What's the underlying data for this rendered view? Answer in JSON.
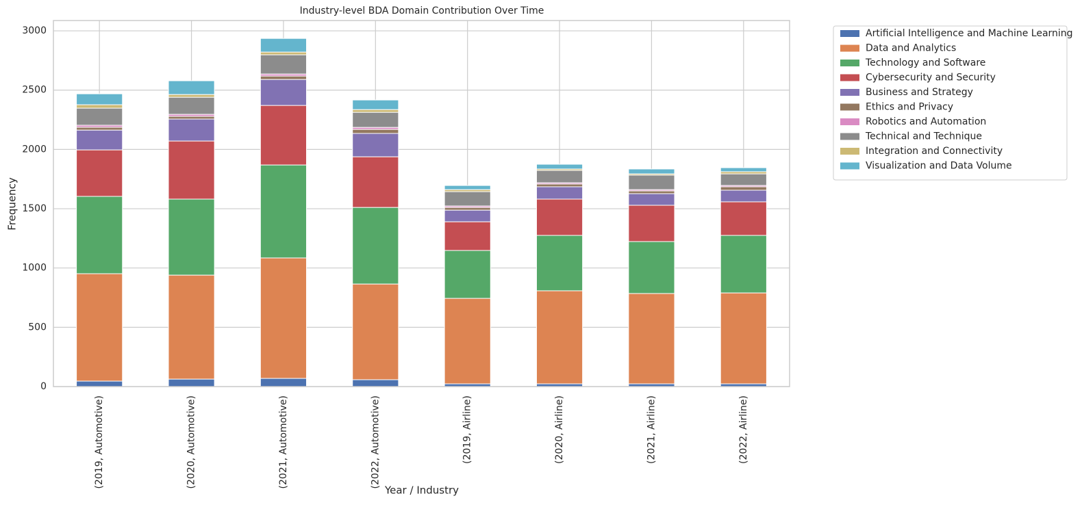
{
  "chart_data": {
    "type": "bar",
    "stacked": true,
    "title": "Industry-level BDA Domain Contribution Over Time",
    "x_label": "Year / Industry",
    "y_label": "Frequency",
    "categories": [
      "(2019, Automotive)",
      "(2020, Automotive)",
      "(2021, Automotive)",
      "(2022, Automotive)",
      "(2019, Airline)",
      "(2020, Airline)",
      "(2021, Airline)",
      "(2022, Airline)"
    ],
    "series": [
      {
        "name": "Artificial Intelligence and Machine Learning",
        "color": "#4c72b0",
        "values": [
          46,
          63,
          69,
          58,
          23,
          23,
          23,
          23
        ]
      },
      {
        "name": "Data and Analytics",
        "color": "#dd8452",
        "values": [
          906,
          877,
          1016,
          807,
          721,
          785,
          762,
          767
        ]
      },
      {
        "name": "Technology and Software",
        "color": "#55a868",
        "values": [
          652,
          641,
          784,
          646,
          404,
          467,
          438,
          485
        ]
      },
      {
        "name": "Cybersecurity and Security",
        "color": "#c44e52",
        "values": [
          392,
          490,
          502,
          427,
          242,
          306,
          306,
          283
        ]
      },
      {
        "name": "Business and Strategy",
        "color": "#8172b3",
        "values": [
          167,
          185,
          219,
          197,
          98,
          104,
          98,
          98
        ]
      },
      {
        "name": "Ethics and Privacy",
        "color": "#937860",
        "values": [
          24,
          23,
          29,
          34,
          23,
          23,
          23,
          29
        ]
      },
      {
        "name": "Robotics and Automation",
        "color": "#da8bc3",
        "values": [
          17,
          17,
          17,
          17,
          12,
          11,
          11,
          11
        ]
      },
      {
        "name": "Technical and Technique",
        "color": "#8c8c8c",
        "values": [
          144,
          144,
          162,
          127,
          121,
          104,
          122,
          98
        ]
      },
      {
        "name": "Integration and Connectivity",
        "color": "#ccb974",
        "values": [
          29,
          23,
          23,
          23,
          17,
          12,
          11,
          18
        ]
      },
      {
        "name": "Visualization and Data Volume",
        "color": "#64b5cd",
        "values": [
          92,
          116,
          115,
          81,
          35,
          40,
          41,
          34
        ]
      }
    ],
    "ylim": [
      0,
      3087
    ],
    "yticks": [
      0,
      500,
      1000,
      1500,
      2000,
      2500,
      3000
    ],
    "grid": true,
    "legend": "outside upper right"
  }
}
